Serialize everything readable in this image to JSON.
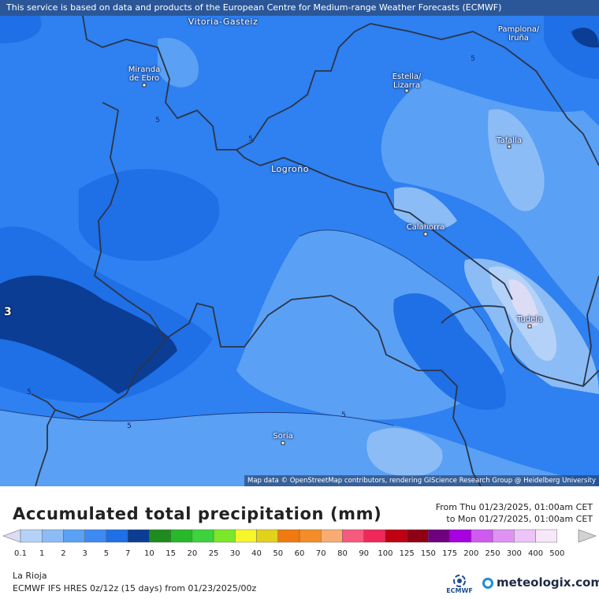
{
  "banner": "This service is based on data and products of the European Centre for Medium-range Weather Forecasts (ECMWF)",
  "attribution": "Map data © OpenStreetMap contributors, rendering GIScience Research Group @ Heidelberg University",
  "cities": [
    {
      "name": "Vitoria-Gasteiz",
      "line1": "Vitoria-Gasteiz",
      "line2": ""
    },
    {
      "name": "Pamplona",
      "line1": "Pamplona/",
      "line2": "Iruña"
    },
    {
      "name": "Miranda de Ebro",
      "line1": "Miranda",
      "line2": "de Ebro"
    },
    {
      "name": "Estella",
      "line1": "Estella/",
      "line2": "Lizarra"
    },
    {
      "name": "Tafalla",
      "line1": "Tafalla",
      "line2": ""
    },
    {
      "name": "Logroño",
      "line1": "Logroño",
      "line2": ""
    },
    {
      "name": "Calahorra",
      "line1": "Calahorra",
      "line2": ""
    },
    {
      "name": "Tudela",
      "line1": "Tudela",
      "line2": ""
    },
    {
      "name": "Soria",
      "line1": "Soria",
      "line2": ""
    }
  ],
  "contour_labels": [
    "5",
    "5",
    "5",
    "5",
    "5",
    "5"
  ],
  "edge_label": "3",
  "legend": {
    "title": "Accumulated total precipitation (mm)",
    "period_from": "From Thu 01/23/2025, 01:00am CET",
    "period_to": "to Mon 01/27/2025, 01:00am CET",
    "ticks": [
      "0.1",
      "1",
      "2",
      "3",
      "5",
      "7",
      "10",
      "15",
      "20",
      "25",
      "30",
      "40",
      "50",
      "60",
      "70",
      "80",
      "90",
      "100",
      "125",
      "150",
      "175",
      "200",
      "250",
      "300",
      "400",
      "500"
    ],
    "colors": [
      "#dcdcf4",
      "#b4d2f8",
      "#8cbcf6",
      "#5aa0f4",
      "#3c8af2",
      "#1f6fe6",
      "#0c3d94",
      "#1f8c1f",
      "#29b829",
      "#3cd33c",
      "#7ce62a",
      "#f6f62a",
      "#e2d21c",
      "#f07a10",
      "#f48c28",
      "#f8ac74",
      "#f65a7c",
      "#f0285a",
      "#c00012",
      "#900014",
      "#700080",
      "#a800e0",
      "#d05af0",
      "#e092f4",
      "#ecc4f8",
      "#f8e6fa",
      "#d2d2d2"
    ],
    "region": "La Rioja",
    "model": "ECMWF IFS HRES 0z/12z (15 days) from  01/23/2025/00z"
  },
  "logos": {
    "ecmwf": "ECMWF",
    "meteologix": "meteologix.com"
  }
}
